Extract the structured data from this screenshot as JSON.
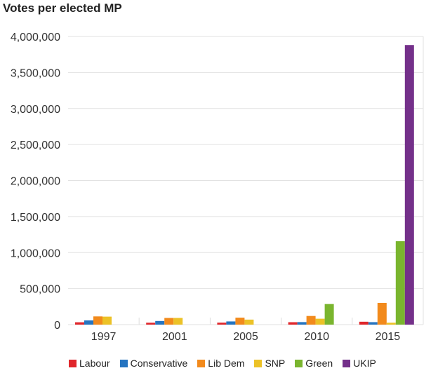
{
  "chart_data": {
    "type": "bar",
    "title": "Votes per elected MP",
    "categories": [
      "1997",
      "2001",
      "2005",
      "2010",
      "2015"
    ],
    "ylim": [
      0,
      4000000
    ],
    "yticks": [
      0,
      500000,
      1000000,
      1500000,
      2000000,
      2500000,
      3000000,
      3500000,
      4000000
    ],
    "ytick_labels": [
      "0",
      "500,000",
      "1,000,000",
      "1,500,000",
      "2,000,000",
      "2,500,000",
      "3,000,000",
      "3,500,000",
      "4,000,000"
    ],
    "grid": true,
    "legend": "bottom",
    "series": [
      {
        "name": "Labour",
        "color": "#e0262b",
        "values": [
          32352,
          26031,
          26906,
          33370,
          40290
        ]
      },
      {
        "name": "Conservative",
        "color": "#2574c0",
        "values": [
          58127,
          50347,
          44373,
          35028,
          34244
        ]
      },
      {
        "name": "Lib Dem",
        "color": "#f28a1c",
        "values": [
          113937,
          92546,
          96539,
          119944,
          301986
        ]
      },
      {
        "name": "SNP",
        "color": "#ecc227",
        "values": [
          110889,
          92730,
          69487,
          81898,
          25972
        ]
      },
      {
        "name": "Green",
        "color": "#7ab52e",
        "values": [
          null,
          null,
          null,
          285616,
          1157613
        ]
      },
      {
        "name": "UKIP",
        "color": "#74308a",
        "values": [
          null,
          null,
          null,
          null,
          3881099
        ]
      }
    ]
  }
}
